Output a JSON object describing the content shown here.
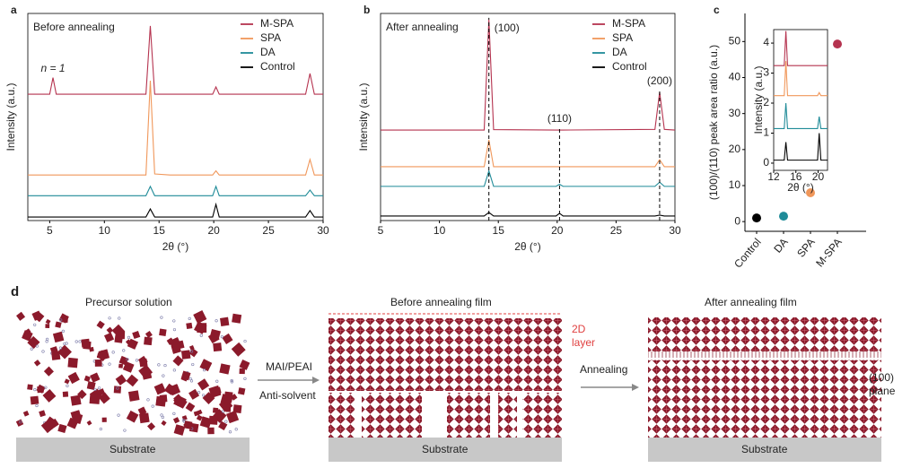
{
  "chart_data": [
    {
      "type": "line",
      "panel": "a",
      "note": "Before annealing",
      "xlabel": "2θ (°)",
      "ylabel": "Intensity (a.u.)",
      "xlim": [
        3,
        30
      ],
      "xticks": [
        5,
        10,
        15,
        20,
        25,
        30
      ],
      "ylim": [
        0,
        100
      ],
      "frame": true,
      "legend": "upper right",
      "x": [
        3,
        5,
        5.3,
        5.6,
        8,
        10,
        13.8,
        14.2,
        14.6,
        16,
        19.9,
        20.2,
        20.5,
        24,
        28.4,
        28.8,
        29.2,
        30
      ],
      "series": [
        {
          "name": "M-SPA",
          "color": "#b5334f",
          "values": [
            61,
            61,
            69,
            61,
            61,
            61,
            61,
            94,
            61,
            61,
            61,
            64.5,
            61,
            61,
            61,
            71,
            61,
            61
          ]
        },
        {
          "name": "SPA",
          "color": "#f0975a",
          "values": [
            22,
            22,
            22,
            22,
            22,
            22,
            22,
            67.5,
            22.5,
            22,
            22,
            24,
            22,
            22,
            22,
            29.5,
            22,
            22
          ]
        },
        {
          "name": "DA",
          "color": "#1f8b98",
          "values": [
            12,
            12,
            12,
            12,
            12,
            12,
            12,
            16.5,
            12,
            12,
            12,
            16.5,
            12,
            12,
            12,
            14.7,
            12,
            12
          ]
        },
        {
          "name": "Control",
          "color": "#000000",
          "values": [
            1.7,
            1.7,
            1.7,
            1.7,
            1.7,
            1.7,
            1.7,
            5.6,
            1.7,
            1.7,
            1.7,
            7.8,
            1.7,
            1.7,
            1.7,
            4.8,
            1.7,
            1.7
          ]
        }
      ],
      "annotations": [
        {
          "x": 5.3,
          "label": "n = 1"
        }
      ]
    },
    {
      "type": "line",
      "panel": "b",
      "note": "After annealing",
      "xlabel": "2θ (°)",
      "ylabel": "Intensity (a.u.)",
      "xlim": [
        5,
        30
      ],
      "xticks": [
        5,
        10,
        15,
        20,
        25,
        30
      ],
      "ylim": [
        0,
        100
      ],
      "frame": true,
      "legend": "upper right",
      "x": [
        5,
        13.8,
        14.2,
        14.6,
        19.9,
        20.2,
        20.5,
        28.3,
        28.7,
        29.1,
        30
      ],
      "series": [
        {
          "name": "M-SPA",
          "color": "#b5334f",
          "values": [
            43.7,
            43.7,
            97,
            43.9,
            43.7,
            43.7,
            43.7,
            44,
            62,
            44,
            43.7
          ]
        },
        {
          "name": "SPA",
          "color": "#f0975a",
          "values": [
            26,
            26,
            39,
            26,
            26,
            26,
            26,
            26,
            29.4,
            26,
            26
          ]
        },
        {
          "name": "DA",
          "color": "#1f8b98",
          "values": [
            16.5,
            16.5,
            24,
            16.5,
            16.5,
            17.5,
            16.5,
            16.5,
            18.5,
            16.5,
            16.5
          ]
        },
        {
          "name": "Control",
          "color": "#000000",
          "values": [
            2.2,
            2.2,
            3.9,
            2.2,
            2.2,
            3.5,
            2.2,
            2.2,
            2.6,
            2.2,
            2.2
          ]
        }
      ],
      "guides": [
        {
          "x": 14.2,
          "label": "(100)"
        },
        {
          "x": 20.2,
          "label": "(110)"
        },
        {
          "x": 28.7,
          "label": "(200)"
        }
      ]
    },
    {
      "type": "scatter",
      "panel": "c",
      "ylabel": "(100)/(110) peak area ratio (a.u.)",
      "categories": [
        "Control",
        "DA",
        "SPA",
        "M-SPA"
      ],
      "values": [
        1,
        1.5,
        8,
        49.3
      ],
      "colors": [
        "#000000",
        "#1f8b98",
        "#f0975a",
        "#b5334f"
      ],
      "ylim": [
        -2.7,
        57.8
      ],
      "yticks": [
        0,
        10,
        20,
        30,
        40,
        50
      ],
      "frame": false
    },
    {
      "type": "line",
      "xlabel": "2θ (°)",
      "ylabel": "Intensity (a.u.)",
      "xlim": [
        12,
        21.7
      ],
      "xticks": [
        12,
        16,
        20
      ],
      "ylim": [
        -0.24,
        4.45
      ],
      "yticks": [
        0,
        1,
        2,
        3,
        4
      ],
      "frame": true,
      "x": [
        12,
        13.9,
        14.2,
        14.5,
        19.9,
        20.2,
        20.5,
        21.7
      ],
      "series": [
        {
          "name": "M-SPA",
          "color": "#b5334f",
          "values": [
            3.25,
            3.25,
            4.4,
            3.25,
            3.25,
            3.25,
            3.25,
            3.25
          ]
        },
        {
          "name": "SPA",
          "color": "#f0975a",
          "values": [
            2.25,
            2.25,
            3.4,
            2.25,
            2.25,
            2.35,
            2.25,
            2.25
          ]
        },
        {
          "name": "DA",
          "color": "#1f8b98",
          "values": [
            1.15,
            1.15,
            2.0,
            1.15,
            1.15,
            1.55,
            1.15,
            1.15
          ]
        },
        {
          "name": "Control",
          "color": "#000000",
          "values": [
            0.1,
            0.1,
            0.7,
            0.1,
            0.1,
            1.0,
            0.1,
            0.1
          ]
        }
      ]
    }
  ],
  "diagram": {
    "panel": "d",
    "stages": [
      {
        "title": "Precursor solution",
        "substrate": "Substrate"
      },
      {
        "title": "Before annealing film",
        "substrate": "Substrate"
      },
      {
        "title": "After annealing film",
        "substrate": "Substrate"
      }
    ],
    "arrows": [
      {
        "labels": [
          "MAI/PEAI",
          "Anti-solvent"
        ]
      },
      {
        "labels": [
          "Annealing"
        ]
      }
    ],
    "callouts": [
      "2D layer",
      "(100) plane"
    ]
  }
}
